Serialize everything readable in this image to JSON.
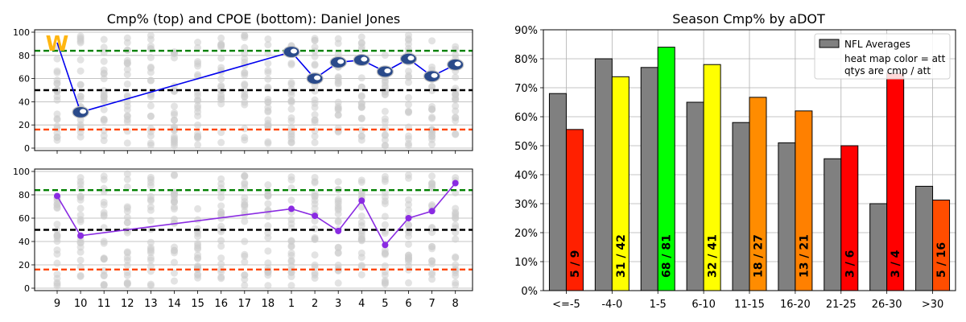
{
  "chart_data": [
    {
      "type": "scatter",
      "title": "Cmp% (top) and CPOE (bottom): Daniel Jones",
      "panel": "top",
      "categories": [
        "9",
        "10",
        "11",
        "12",
        "13",
        "14",
        "15",
        "16",
        "17",
        "18",
        "1",
        "2",
        "3",
        "4",
        "5",
        "6",
        "7",
        "8"
      ],
      "ylim": [
        0,
        100
      ],
      "yticks": [
        "0",
        "20",
        "40",
        "60",
        "80",
        "100"
      ],
      "reference_lines": [
        {
          "y": 84,
          "color": "#008000"
        },
        {
          "y": 50,
          "color": "#000000"
        },
        {
          "y": 16,
          "color": "#ff4500"
        }
      ],
      "series": [
        {
          "color": "#0000ee",
          "points": [
            {
              "x": "9",
              "y": 91,
              "team_logo": "washington"
            },
            {
              "x": "10",
              "y": 31,
              "team_logo": "carolina"
            },
            {
              "x": "1",
              "y": 83,
              "team_logo": "miami"
            },
            {
              "x": "2",
              "y": 60,
              "team_logo": "denver"
            },
            {
              "x": "3",
              "y": 74,
              "team_logo": "tennessee"
            },
            {
              "x": "4",
              "y": 76,
              "team_logo": "la-rams"
            },
            {
              "x": "5",
              "y": 66,
              "team_logo": "las-vegas"
            },
            {
              "x": "6",
              "y": 77,
              "team_logo": "arizona"
            },
            {
              "x": "7",
              "y": 62,
              "team_logo": "la-chargers"
            },
            {
              "x": "8",
              "y": 72,
              "team_logo": "tennessee"
            }
          ]
        }
      ],
      "grid": true
    },
    {
      "type": "line",
      "panel": "bottom",
      "categories": [
        "9",
        "10",
        "11",
        "12",
        "13",
        "14",
        "15",
        "16",
        "17",
        "18",
        "1",
        "2",
        "3",
        "4",
        "5",
        "6",
        "7",
        "8"
      ],
      "ylim": [
        0,
        100
      ],
      "yticks": [
        "0",
        "20",
        "40",
        "60",
        "80",
        "100"
      ],
      "reference_lines": [
        {
          "y": 84,
          "color": "#008000"
        },
        {
          "y": 50,
          "color": "#000000"
        },
        {
          "y": 16,
          "color": "#ff4500"
        }
      ],
      "series": [
        {
          "color": "#8a2be2",
          "points": [
            {
              "x": "9",
              "y": 79
            },
            {
              "x": "10",
              "y": 45
            },
            {
              "x": "1",
              "y": 68
            },
            {
              "x": "2",
              "y": 62
            },
            {
              "x": "3",
              "y": 49
            },
            {
              "x": "4",
              "y": 75
            },
            {
              "x": "5",
              "y": 37
            },
            {
              "x": "6",
              "y": 60
            },
            {
              "x": "7",
              "y": 66
            },
            {
              "x": "8",
              "y": 90
            }
          ]
        }
      ],
      "grid": true
    },
    {
      "type": "bar",
      "title": "Season Cmp% by aDOT",
      "categories": [
        "<=-5",
        "-4-0",
        "1-5",
        "6-10",
        "11-15",
        "16-20",
        "21-25",
        "26-30",
        ">30"
      ],
      "ylim": [
        0,
        0.9
      ],
      "yticks": [
        "0%",
        "10%",
        "20%",
        "30%",
        "40%",
        "50%",
        "60%",
        "70%",
        "80%",
        "90%"
      ],
      "legend": {
        "position": "top-right",
        "entries": [
          "NFL Averages",
          "heat map color = att",
          "qtys are cmp / att"
        ]
      },
      "series": [
        {
          "name": "NFL Averages",
          "color": "#808080",
          "values": [
            0.68,
            0.8,
            0.77,
            0.65,
            0.58,
            0.51,
            0.455,
            0.3,
            0.36
          ]
        },
        {
          "values": [
            0.556,
            0.738,
            0.84,
            0.78,
            0.667,
            0.62,
            0.5,
            0.75,
            0.3125
          ],
          "colors": [
            "#ff2000",
            "#ffff00",
            "#00ff00",
            "#ffff00",
            "#ff8c00",
            "#ff8000",
            "#ff0000",
            "#ff0000",
            "#ff4d00"
          ],
          "labels": [
            "5 / 9",
            "31 / 42",
            "68 / 81",
            "32 / 41",
            "18 / 27",
            "13 / 21",
            "3 / 6",
            "3 / 4",
            "5 / 16"
          ]
        }
      ],
      "grid": true
    }
  ]
}
